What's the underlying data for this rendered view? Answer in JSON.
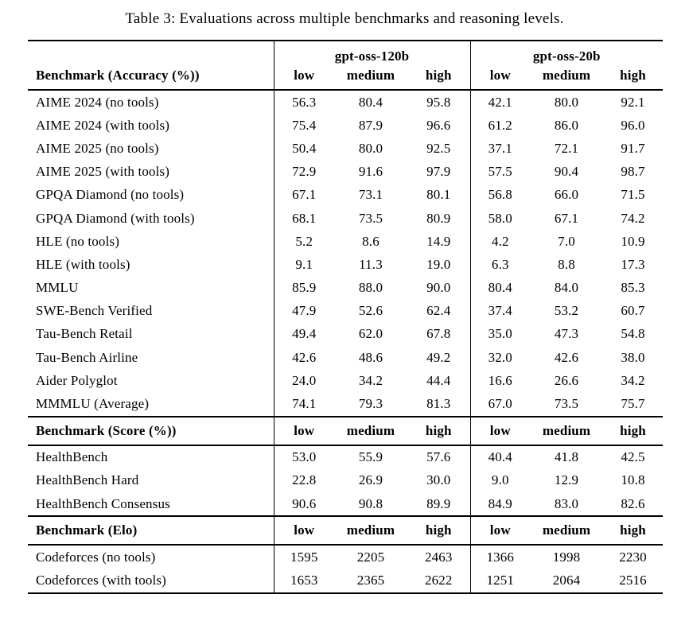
{
  "title": "Table 3: Evaluations across multiple benchmarks and reasoning levels.",
  "colors": {
    "text": "#000000",
    "background": "#ffffff",
    "rule": "#000000"
  },
  "table": {
    "model_groups": [
      "gpt-oss-120b",
      "gpt-oss-20b"
    ],
    "levels": [
      "low",
      "medium",
      "high"
    ],
    "sections": [
      {
        "header": "Benchmark (Accuracy (%))",
        "rows": [
          {
            "benchmark": "AIME 2024 (no tools)",
            "gpt_oss_120b": [
              "56.3",
              "80.4",
              "95.8"
            ],
            "gpt_oss_20b": [
              "42.1",
              "80.0",
              "92.1"
            ]
          },
          {
            "benchmark": "AIME 2024 (with tools)",
            "gpt_oss_120b": [
              "75.4",
              "87.9",
              "96.6"
            ],
            "gpt_oss_20b": [
              "61.2",
              "86.0",
              "96.0"
            ]
          },
          {
            "benchmark": "AIME 2025 (no tools)",
            "gpt_oss_120b": [
              "50.4",
              "80.0",
              "92.5"
            ],
            "gpt_oss_20b": [
              "37.1",
              "72.1",
              "91.7"
            ]
          },
          {
            "benchmark": "AIME 2025 (with tools)",
            "gpt_oss_120b": [
              "72.9",
              "91.6",
              "97.9"
            ],
            "gpt_oss_20b": [
              "57.5",
              "90.4",
              "98.7"
            ]
          },
          {
            "benchmark": "GPQA Diamond (no tools)",
            "gpt_oss_120b": [
              "67.1",
              "73.1",
              "80.1"
            ],
            "gpt_oss_20b": [
              "56.8",
              "66.0",
              "71.5"
            ]
          },
          {
            "benchmark": "GPQA Diamond (with tools)",
            "gpt_oss_120b": [
              "68.1",
              "73.5",
              "80.9"
            ],
            "gpt_oss_20b": [
              "58.0",
              "67.1",
              "74.2"
            ]
          },
          {
            "benchmark": "HLE (no tools)",
            "gpt_oss_120b": [
              "5.2",
              "8.6",
              "14.9"
            ],
            "gpt_oss_20b": [
              "4.2",
              "7.0",
              "10.9"
            ]
          },
          {
            "benchmark": "HLE (with tools)",
            "gpt_oss_120b": [
              "9.1",
              "11.3",
              "19.0"
            ],
            "gpt_oss_20b": [
              "6.3",
              "8.8",
              "17.3"
            ]
          },
          {
            "benchmark": "MMLU",
            "gpt_oss_120b": [
              "85.9",
              "88.0",
              "90.0"
            ],
            "gpt_oss_20b": [
              "80.4",
              "84.0",
              "85.3"
            ]
          },
          {
            "benchmark": "SWE-Bench Verified",
            "gpt_oss_120b": [
              "47.9",
              "52.6",
              "62.4"
            ],
            "gpt_oss_20b": [
              "37.4",
              "53.2",
              "60.7"
            ]
          },
          {
            "benchmark": "Tau-Bench Retail",
            "gpt_oss_120b": [
              "49.4",
              "62.0",
              "67.8"
            ],
            "gpt_oss_20b": [
              "35.0",
              "47.3",
              "54.8"
            ]
          },
          {
            "benchmark": "Tau-Bench Airline",
            "gpt_oss_120b": [
              "42.6",
              "48.6",
              "49.2"
            ],
            "gpt_oss_20b": [
              "32.0",
              "42.6",
              "38.0"
            ]
          },
          {
            "benchmark": "Aider Polyglot",
            "gpt_oss_120b": [
              "24.0",
              "34.2",
              "44.4"
            ],
            "gpt_oss_20b": [
              "16.6",
              "26.6",
              "34.2"
            ]
          },
          {
            "benchmark": "MMMLU (Average)",
            "gpt_oss_120b": [
              "74.1",
              "79.3",
              "81.3"
            ],
            "gpt_oss_20b": [
              "67.0",
              "73.5",
              "75.7"
            ]
          }
        ]
      },
      {
        "header": "Benchmark (Score (%))",
        "rows": [
          {
            "benchmark": "HealthBench",
            "gpt_oss_120b": [
              "53.0",
              "55.9",
              "57.6"
            ],
            "gpt_oss_20b": [
              "40.4",
              "41.8",
              "42.5"
            ]
          },
          {
            "benchmark": "HealthBench Hard",
            "gpt_oss_120b": [
              "22.8",
              "26.9",
              "30.0"
            ],
            "gpt_oss_20b": [
              "9.0",
              "12.9",
              "10.8"
            ]
          },
          {
            "benchmark": "HealthBench Consensus",
            "gpt_oss_120b": [
              "90.6",
              "90.8",
              "89.9"
            ],
            "gpt_oss_20b": [
              "84.9",
              "83.0",
              "82.6"
            ]
          }
        ]
      },
      {
        "header": "Benchmark (Elo)",
        "rows": [
          {
            "benchmark": "Codeforces (no tools)",
            "gpt_oss_120b": [
              "1595",
              "2205",
              "2463"
            ],
            "gpt_oss_20b": [
              "1366",
              "1998",
              "2230"
            ]
          },
          {
            "benchmark": "Codeforces (with tools)",
            "gpt_oss_120b": [
              "1653",
              "2365",
              "2622"
            ],
            "gpt_oss_20b": [
              "1251",
              "2064",
              "2516"
            ]
          }
        ]
      }
    ]
  }
}
